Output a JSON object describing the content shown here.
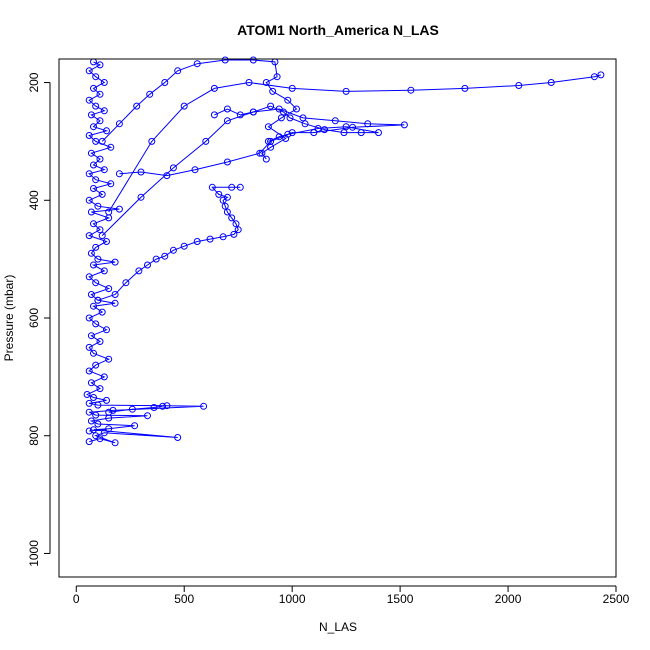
{
  "chart_data": {
    "type": "scatter",
    "title": "ATOM1 North_America N_LAS",
    "xlabel": "N_LAS",
    "ylabel": "Pressure (mbar)",
    "xlim": [
      -80,
      2500
    ],
    "ylim": [
      1040,
      160
    ],
    "y_inverted": true,
    "x_ticks": [
      "0",
      "500",
      "1000",
      "1500",
      "2000",
      "2500"
    ],
    "y_ticks": [
      "200",
      "400",
      "600",
      "800",
      "1000"
    ],
    "marker": "open-circle",
    "line": true,
    "color": "#0000ff",
    "series": [
      {
        "points": [
          [
            60,
            810
          ],
          [
            110,
            805
          ],
          [
            180,
            812
          ],
          [
            90,
            800
          ],
          [
            130,
            795
          ],
          [
            470,
            803
          ],
          [
            80,
            790
          ],
          [
            150,
            788
          ],
          [
            60,
            792
          ],
          [
            270,
            783
          ],
          [
            100,
            780
          ],
          [
            70,
            775
          ],
          [
            150,
            770
          ],
          [
            330,
            766
          ],
          [
            90,
            765
          ],
          [
            60,
            760
          ],
          [
            170,
            757
          ],
          [
            590,
            750
          ],
          [
            420,
            749
          ],
          [
            100,
            748
          ],
          [
            60,
            745
          ],
          [
            140,
            740
          ],
          [
            80,
            735
          ],
          [
            50,
            730
          ],
          [
            110,
            720
          ],
          [
            70,
            710
          ],
          [
            130,
            700
          ],
          [
            60,
            690
          ],
          [
            90,
            680
          ],
          [
            150,
            670
          ],
          [
            80,
            660
          ],
          [
            60,
            650
          ],
          [
            110,
            640
          ],
          [
            70,
            630
          ],
          [
            140,
            620
          ],
          [
            90,
            610
          ],
          [
            60,
            600
          ],
          [
            120,
            590
          ],
          [
            80,
            580
          ],
          [
            180,
            575
          ],
          [
            100,
            570
          ],
          [
            70,
            560
          ],
          [
            150,
            550
          ],
          [
            90,
            540
          ],
          [
            60,
            530
          ],
          [
            130,
            520
          ],
          [
            80,
            510
          ],
          [
            180,
            505
          ],
          [
            100,
            500
          ],
          [
            70,
            490
          ],
          [
            90,
            480
          ],
          [
            140,
            470
          ],
          [
            60,
            460
          ],
          [
            110,
            450
          ],
          [
            80,
            440
          ],
          [
            150,
            430
          ],
          [
            70,
            420
          ],
          [
            200,
            415
          ],
          [
            100,
            410
          ],
          [
            60,
            400
          ],
          [
            120,
            390
          ],
          [
            80,
            380
          ],
          [
            160,
            372
          ],
          [
            90,
            365
          ],
          [
            60,
            355
          ],
          [
            130,
            348
          ],
          [
            80,
            340
          ],
          [
            110,
            330
          ],
          [
            70,
            320
          ],
          [
            160,
            310
          ],
          [
            90,
            300
          ],
          [
            60,
            290
          ],
          [
            140,
            282
          ],
          [
            80,
            275
          ],
          [
            110,
            265
          ],
          [
            70,
            255
          ],
          [
            130,
            248
          ],
          [
            90,
            240
          ],
          [
            60,
            230
          ],
          [
            110,
            220
          ],
          [
            80,
            210
          ],
          [
            130,
            200
          ],
          [
            90,
            190
          ],
          [
            60,
            180
          ],
          [
            110,
            170
          ],
          [
            80,
            165
          ]
        ]
      },
      {
        "points": [
          [
            100,
            570
          ],
          [
            180,
            560
          ],
          [
            230,
            540
          ],
          [
            290,
            520
          ],
          [
            330,
            510
          ],
          [
            370,
            500
          ],
          [
            410,
            495
          ],
          [
            450,
            485
          ],
          [
            500,
            478
          ],
          [
            560,
            470
          ],
          [
            620,
            466
          ],
          [
            680,
            462
          ],
          [
            730,
            458
          ],
          [
            750,
            450
          ],
          [
            740,
            440
          ],
          [
            720,
            430
          ],
          [
            700,
            420
          ],
          [
            690,
            410
          ],
          [
            680,
            400
          ],
          [
            700,
            395
          ],
          [
            660,
            390
          ],
          [
            630,
            378
          ],
          [
            720,
            378
          ],
          [
            760,
            378
          ]
        ]
      },
      {
        "points": [
          [
            120,
            460
          ],
          [
            300,
            395
          ],
          [
            450,
            345
          ],
          [
            600,
            300
          ],
          [
            700,
            265
          ],
          [
            820,
            250
          ],
          [
            940,
            245
          ],
          [
            1050,
            260
          ],
          [
            1200,
            265
          ],
          [
            1350,
            270
          ],
          [
            1520,
            272
          ],
          [
            1280,
            276
          ],
          [
            1100,
            285
          ],
          [
            1000,
            285
          ],
          [
            900,
            300
          ],
          [
            850,
            320
          ],
          [
            700,
            335
          ],
          [
            550,
            348
          ],
          [
            420,
            358
          ],
          [
            300,
            352
          ],
          [
            200,
            355
          ]
        ]
      },
      {
        "points": [
          [
            150,
            420
          ],
          [
            350,
            300
          ],
          [
            500,
            240
          ],
          [
            640,
            210
          ],
          [
            800,
            200
          ],
          [
            1000,
            210
          ],
          [
            1250,
            215
          ],
          [
            1550,
            213
          ],
          [
            1800,
            210
          ],
          [
            2050,
            205
          ],
          [
            2200,
            200
          ],
          [
            2400,
            190
          ],
          [
            2430,
            187
          ]
        ]
      },
      {
        "points": [
          [
            120,
            300
          ],
          [
            200,
            270
          ],
          [
            280,
            240
          ],
          [
            340,
            220
          ],
          [
            410,
            200
          ],
          [
            470,
            180
          ],
          [
            560,
            168
          ],
          [
            690,
            160
          ],
          [
            820,
            155
          ],
          [
            920,
            165
          ],
          [
            930,
            190
          ],
          [
            880,
            200
          ],
          [
            910,
            215
          ],
          [
            980,
            230
          ],
          [
            1020,
            245
          ],
          [
            950,
            260
          ],
          [
            890,
            275
          ],
          [
            970,
            295
          ],
          [
            900,
            310
          ],
          [
            860,
            320
          ],
          [
            880,
            330
          ]
        ]
      },
      {
        "points": [
          [
            640,
            255
          ],
          [
            700,
            245
          ],
          [
            760,
            255
          ],
          [
            820,
            250
          ],
          [
            900,
            240
          ],
          [
            960,
            250
          ],
          [
            990,
            260
          ],
          [
            1060,
            270
          ],
          [
            1150,
            280
          ],
          [
            1240,
            285
          ],
          [
            1320,
            285
          ],
          [
            1400,
            285
          ],
          [
            1250,
            275
          ],
          [
            1120,
            278
          ],
          [
            980,
            288
          ],
          [
            940,
            292
          ],
          [
            890,
            300
          ]
        ]
      },
      {
        "points": [
          [
            150,
            760
          ],
          [
            260,
            755
          ],
          [
            360,
            752
          ],
          [
            400,
            750
          ]
        ]
      }
    ]
  }
}
